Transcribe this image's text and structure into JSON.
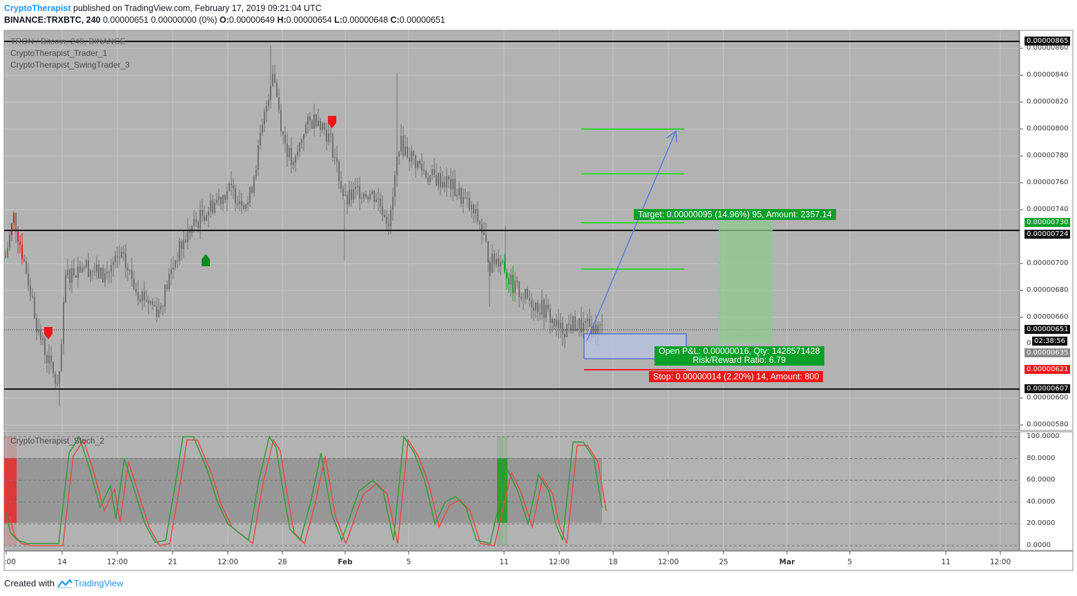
{
  "header": {
    "author": "CryptoTherapist",
    "published_text": " published on TradingView.com, February 17, 2019 09:21:04 UTC",
    "symbol": "BINANCE:TRXBTC, 240",
    "last": "0.00000651",
    "change": "0.00000000 (0%)",
    "o_label": "O:",
    "o_value": "0.00000649",
    "h_label": "H:",
    "h_value": "0.00000654",
    "l_label": "L:",
    "l_value": "0.00000648",
    "c_label": "C:",
    "c_value": "0.00000651"
  },
  "legend": {
    "symbol_watermark": "TRON / Bitcoin, 240, BINANCE",
    "indicator1": "CryptoTherapist_Trader_1",
    "indicator2": "CryptoTherapist_SwingTrader_3",
    "osc": "CryptoTherapist_Stoch_2"
  },
  "trade": {
    "target_label": "Target: 0.00000095 (14.96%) 95, Amount: 2357.14",
    "pnl_line1": "Open P&L: 0.00000016, Qty: 1428571428",
    "pnl_line2": "Risk/Reward Ratio: 6.79",
    "stop_label": "Stop: 0.00000014 (2.20%) 14, Amount: 800"
  },
  "price_axis": {
    "ticks": [
      "0.00000860",
      "0.00000840",
      "0.00000820",
      "0.00000800",
      "0.00000780",
      "0.00000760",
      "0.00000740",
      "0.00000700",
      "0.00000680",
      "0.00000660",
      "0.00000600",
      "0.00000580"
    ],
    "tick_values": [
      860,
      840,
      820,
      800,
      780,
      760,
      740,
      700,
      680,
      660,
      600,
      580
    ],
    "tag_865": "0.00000865",
    "tag_730": "0.00000730",
    "tag_724": "0.00000724",
    "tag_651": "0.00000651",
    "countdown": "02:38:56",
    "tag_635": "0.00000635",
    "tag_621": "0.00000621",
    "tag_607": "0.00000607",
    "tick_zero": "0"
  },
  "osc_axis": {
    "ticks": [
      "100.0000",
      "80.0000",
      "60.0000",
      "40.0000",
      "20.0000",
      "0.0000"
    ],
    "tick_values": [
      100,
      80,
      60,
      40,
      20,
      0
    ]
  },
  "time_axis": {
    "labels": [
      ":00",
      "14",
      "12:00",
      "21",
      "12:00",
      "28",
      "Feb",
      "5",
      "11",
      "12:00",
      "18",
      "12:00",
      "25",
      "Mar",
      "5",
      "11",
      "12:00"
    ],
    "bold": [
      false,
      false,
      false,
      false,
      false,
      false,
      true,
      false,
      false,
      false,
      false,
      false,
      false,
      true,
      false,
      false,
      false
    ]
  },
  "footer": {
    "created_with": "Created with",
    "brand": "TradingView"
  },
  "colors": {
    "pane_bg": "#b2b2b2",
    "candle": "#707070",
    "green": "#09a02a",
    "red": "#f01616",
    "stoch_green": "#3c9a3c",
    "stoch_red": "#e0504a",
    "arrow": "#5b7fd6"
  }
}
